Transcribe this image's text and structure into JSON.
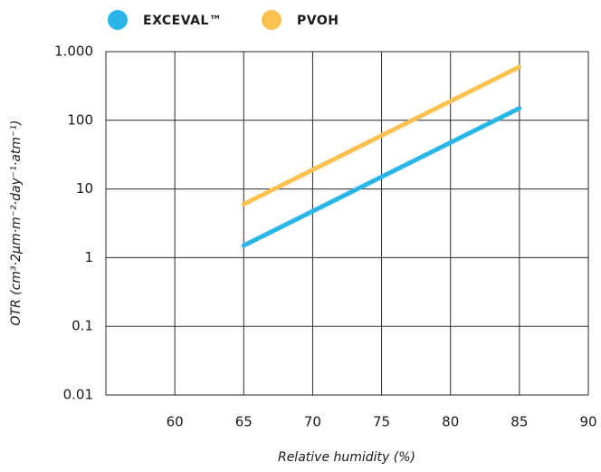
{
  "chart_data": {
    "type": "line",
    "log_y": true,
    "grid": true,
    "x_label": "Relative humidity (%)",
    "y_label": "OTR (cm³·2µm·m⁻²·day⁻¹·atm⁻¹)",
    "xlim": [
      55,
      90
    ],
    "xticks": [
      60,
      65,
      70,
      75,
      80,
      85,
      90
    ],
    "ylim": [
      0.01,
      1000
    ],
    "yticks": [
      0.01,
      0.1,
      1,
      10,
      100,
      {
        "value": 1000,
        "label": "1.000"
      }
    ],
    "x": [
      65,
      85
    ],
    "series": [
      {
        "name": "EXCEVAL™",
        "color": "#29b5e8",
        "values": [
          1.5,
          150
        ]
      },
      {
        "name": "PVOH",
        "color": "#fbc252",
        "values": [
          6,
          600
        ]
      }
    ]
  }
}
